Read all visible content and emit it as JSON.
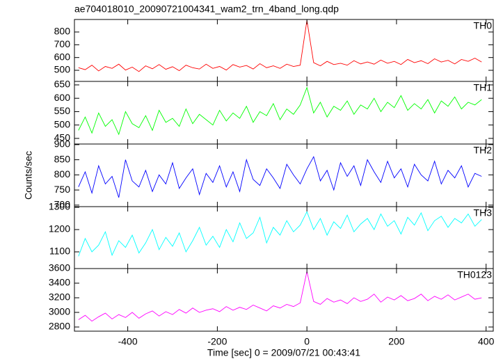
{
  "chart_data": [
    {
      "type": "line",
      "title": "ae704018010_20090721004341_wam2_trn_4band_long.qdp",
      "label": "TH0",
      "color": "#ff0000",
      "x": [
        -510,
        -495,
        -480,
        -465,
        -450,
        -435,
        -420,
        -405,
        -390,
        -375,
        -360,
        -345,
        -330,
        -315,
        -300,
        -285,
        -270,
        -255,
        -240,
        -225,
        -210,
        -195,
        -180,
        -165,
        -150,
        -135,
        -120,
        -105,
        -90,
        -75,
        -60,
        -45,
        -30,
        -15,
        0,
        15,
        30,
        45,
        60,
        75,
        90,
        105,
        120,
        135,
        150,
        165,
        180,
        195,
        210,
        225,
        240,
        255,
        270,
        285,
        300,
        315,
        330,
        345,
        360,
        375,
        390
      ],
      "values": [
        520,
        505,
        540,
        495,
        530,
        515,
        548,
        502,
        525,
        490,
        535,
        512,
        545,
        508,
        528,
        497,
        540,
        520,
        510,
        548,
        515,
        530,
        502,
        545,
        525,
        538,
        510,
        552,
        520,
        535,
        515,
        548,
        530,
        540,
        890,
        560,
        535,
        570,
        545,
        555,
        540,
        575,
        550,
        565,
        548,
        580,
        555,
        570,
        545,
        585,
        560,
        575,
        552,
        590,
        565,
        578,
        550,
        585,
        570,
        595,
        565
      ],
      "ylim": [
        413,
        898
      ],
      "yticks": [
        500,
        600,
        700,
        800
      ]
    },
    {
      "type": "line",
      "label": "TH1",
      "color": "#00ff00",
      "x": [
        -510,
        -495,
        -480,
        -465,
        -450,
        -435,
        -420,
        -405,
        -390,
        -375,
        -360,
        -345,
        -330,
        -315,
        -300,
        -285,
        -270,
        -255,
        -240,
        -225,
        -210,
        -195,
        -180,
        -165,
        -150,
        -135,
        -120,
        -105,
        -90,
        -75,
        -60,
        -45,
        -30,
        -15,
        0,
        15,
        30,
        45,
        60,
        75,
        90,
        105,
        120,
        135,
        150,
        165,
        180,
        195,
        210,
        225,
        240,
        255,
        270,
        285,
        300,
        315,
        330,
        345,
        360,
        375,
        390
      ],
      "values": [
        480,
        530,
        470,
        545,
        495,
        520,
        465,
        550,
        505,
        490,
        535,
        480,
        555,
        510,
        525,
        495,
        560,
        505,
        540,
        520,
        500,
        555,
        515,
        545,
        525,
        570,
        510,
        550,
        535,
        580,
        520,
        560,
        540,
        575,
        640,
        545,
        585,
        530,
        570,
        555,
        590,
        540,
        575,
        560,
        600,
        550,
        585,
        565,
        610,
        555,
        580,
        560,
        595,
        545,
        590,
        570,
        605,
        560,
        585,
        575,
        595
      ],
      "ylim": [
        429,
        663
      ],
      "yticks": [
        450,
        500,
        550,
        600,
        650
      ]
    },
    {
      "type": "line",
      "label": "TH2",
      "ylabel": "Counts/sec",
      "color": "#0000ff",
      "x": [
        -510,
        -495,
        -480,
        -465,
        -450,
        -435,
        -420,
        -405,
        -390,
        -375,
        -360,
        -345,
        -330,
        -315,
        -300,
        -285,
        -270,
        -255,
        -240,
        -225,
        -210,
        -195,
        -180,
        -165,
        -150,
        -135,
        -120,
        -105,
        -90,
        -75,
        -60,
        -45,
        -30,
        -15,
        0,
        15,
        30,
        45,
        60,
        75,
        90,
        105,
        120,
        135,
        150,
        165,
        180,
        195,
        210,
        225,
        240,
        255,
        270,
        285,
        300,
        315,
        330,
        345,
        360,
        375,
        390
      ],
      "values": [
        760,
        810,
        740,
        830,
        770,
        795,
        725,
        850,
        780,
        760,
        815,
        745,
        800,
        770,
        840,
        755,
        790,
        820,
        735,
        805,
        775,
        830,
        760,
        810,
        745,
        850,
        785,
        765,
        820,
        790,
        755,
        835,
        800,
        770,
        820,
        860,
        780,
        815,
        750,
        840,
        795,
        830,
        765,
        850,
        810,
        775,
        845,
        790,
        820,
        760,
        835,
        800,
        780,
        845,
        770,
        815,
        790,
        830,
        760,
        805,
        795
      ],
      "ylim": [
        695,
        902
      ],
      "yticks": [
        700,
        750,
        800,
        850,
        900
      ]
    },
    {
      "type": "line",
      "label": "TH3",
      "color": "#00ffff",
      "x": [
        -510,
        -495,
        -480,
        -465,
        -450,
        -435,
        -420,
        -405,
        -390,
        -375,
        -360,
        -345,
        -330,
        -315,
        -300,
        -285,
        -270,
        -255,
        -240,
        -225,
        -210,
        -195,
        -180,
        -165,
        -150,
        -135,
        -120,
        -105,
        -90,
        -75,
        -60,
        -45,
        -30,
        -15,
        0,
        15,
        30,
        45,
        60,
        75,
        90,
        105,
        120,
        135,
        150,
        165,
        180,
        195,
        210,
        225,
        240,
        255,
        270,
        285,
        300,
        315,
        330,
        345,
        360,
        375,
        390
      ],
      "values": [
        1080,
        1160,
        1100,
        1130,
        1190,
        1085,
        1150,
        1120,
        1175,
        1095,
        1140,
        1200,
        1110,
        1165,
        1125,
        1185,
        1100,
        1150,
        1210,
        1130,
        1170,
        1120,
        1200,
        1145,
        1230,
        1160,
        1185,
        1255,
        1140,
        1210,
        1175,
        1240,
        1190,
        1220,
        1280,
        1200,
        1250,
        1175,
        1235,
        1205,
        1265,
        1190,
        1225,
        1250,
        1200,
        1270,
        1215,
        1240,
        1180,
        1255,
        1220,
        1275,
        1195,
        1240,
        1260,
        1210,
        1250,
        1230,
        1270,
        1215,
        1245
      ],
      "ylim": [
        1025,
        1303
      ],
      "yticks": [
        1100,
        1200,
        1300
      ]
    },
    {
      "type": "line",
      "label": "TH0123",
      "color": "#ff00ff",
      "xlabel": "Time [sec] 0 = 2009/07/21 00:43:41",
      "x": [
        -510,
        -495,
        -480,
        -465,
        -450,
        -435,
        -420,
        -405,
        -390,
        -375,
        -360,
        -345,
        -330,
        -315,
        -300,
        -285,
        -270,
        -255,
        -240,
        -225,
        -210,
        -195,
        -180,
        -165,
        -150,
        -135,
        -120,
        -105,
        -90,
        -75,
        -60,
        -45,
        -30,
        -15,
        0,
        15,
        30,
        45,
        60,
        75,
        90,
        105,
        120,
        135,
        150,
        165,
        180,
        195,
        210,
        225,
        240,
        255,
        270,
        285,
        300,
        315,
        330,
        345,
        360,
        375,
        390
      ],
      "values": [
        2900,
        2960,
        2880,
        2940,
        2990,
        2910,
        2970,
        2930,
        3000,
        2920,
        2980,
        3020,
        2950,
        3010,
        2970,
        3040,
        2990,
        3060,
        3000,
        3030,
        3050,
        3010,
        3080,
        3030,
        3070,
        3040,
        3100,
        3060,
        3020,
        3090,
        3060,
        3110,
        3080,
        3130,
        3560,
        3150,
        3110,
        3190,
        3140,
        3170,
        3120,
        3200,
        3150,
        3180,
        3250,
        3140,
        3210,
        3170,
        3230,
        3160,
        3190,
        3250,
        3160,
        3220,
        3180,
        3240,
        3170,
        3210,
        3250,
        3180,
        3200
      ],
      "ylim": [
        2743,
        3600
      ],
      "yticks": [
        2800,
        3000,
        3200,
        3400,
        3600
      ],
      "xlim": [
        -519,
        416
      ],
      "xticks": [
        -400,
        -200,
        0,
        200,
        400
      ]
    }
  ]
}
